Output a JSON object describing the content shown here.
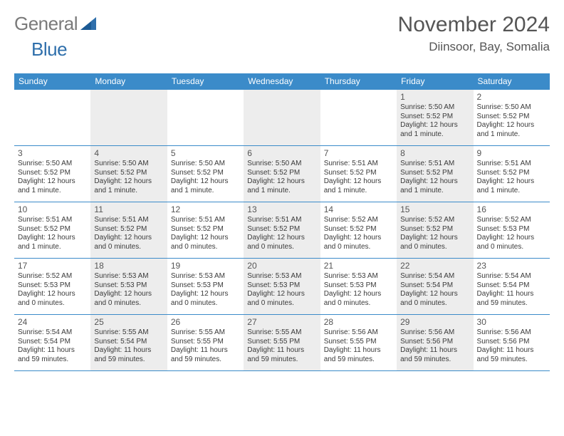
{
  "brand": {
    "part1": "General",
    "part2": "Blue"
  },
  "header": {
    "title": "November 2024",
    "location": "Diinsoor, Bay, Somalia"
  },
  "colors": {
    "header_bg": "#3b8bc9",
    "shade_bg": "#ededed",
    "text": "#3a3a3a"
  },
  "dayNames": [
    "Sunday",
    "Monday",
    "Tuesday",
    "Wednesday",
    "Thursday",
    "Friday",
    "Saturday"
  ],
  "weeks": [
    [
      {
        "blank": true
      },
      {
        "blank": true,
        "shaded": true
      },
      {
        "blank": true
      },
      {
        "blank": true,
        "shaded": true
      },
      {
        "blank": true
      },
      {
        "date": "1",
        "shaded": true,
        "sunrise": "Sunrise: 5:50 AM",
        "sunset": "Sunset: 5:52 PM",
        "day1": "Daylight: 12 hours",
        "day2": "and 1 minute."
      },
      {
        "date": "2",
        "sunrise": "Sunrise: 5:50 AM",
        "sunset": "Sunset: 5:52 PM",
        "day1": "Daylight: 12 hours",
        "day2": "and 1 minute."
      }
    ],
    [
      {
        "date": "3",
        "sunrise": "Sunrise: 5:50 AM",
        "sunset": "Sunset: 5:52 PM",
        "day1": "Daylight: 12 hours",
        "day2": "and 1 minute."
      },
      {
        "date": "4",
        "shaded": true,
        "sunrise": "Sunrise: 5:50 AM",
        "sunset": "Sunset: 5:52 PM",
        "day1": "Daylight: 12 hours",
        "day2": "and 1 minute."
      },
      {
        "date": "5",
        "sunrise": "Sunrise: 5:50 AM",
        "sunset": "Sunset: 5:52 PM",
        "day1": "Daylight: 12 hours",
        "day2": "and 1 minute."
      },
      {
        "date": "6",
        "shaded": true,
        "sunrise": "Sunrise: 5:50 AM",
        "sunset": "Sunset: 5:52 PM",
        "day1": "Daylight: 12 hours",
        "day2": "and 1 minute."
      },
      {
        "date": "7",
        "sunrise": "Sunrise: 5:51 AM",
        "sunset": "Sunset: 5:52 PM",
        "day1": "Daylight: 12 hours",
        "day2": "and 1 minute."
      },
      {
        "date": "8",
        "shaded": true,
        "sunrise": "Sunrise: 5:51 AM",
        "sunset": "Sunset: 5:52 PM",
        "day1": "Daylight: 12 hours",
        "day2": "and 1 minute."
      },
      {
        "date": "9",
        "sunrise": "Sunrise: 5:51 AM",
        "sunset": "Sunset: 5:52 PM",
        "day1": "Daylight: 12 hours",
        "day2": "and 1 minute."
      }
    ],
    [
      {
        "date": "10",
        "sunrise": "Sunrise: 5:51 AM",
        "sunset": "Sunset: 5:52 PM",
        "day1": "Daylight: 12 hours",
        "day2": "and 1 minute."
      },
      {
        "date": "11",
        "shaded": true,
        "sunrise": "Sunrise: 5:51 AM",
        "sunset": "Sunset: 5:52 PM",
        "day1": "Daylight: 12 hours",
        "day2": "and 0 minutes."
      },
      {
        "date": "12",
        "sunrise": "Sunrise: 5:51 AM",
        "sunset": "Sunset: 5:52 PM",
        "day1": "Daylight: 12 hours",
        "day2": "and 0 minutes."
      },
      {
        "date": "13",
        "shaded": true,
        "sunrise": "Sunrise: 5:51 AM",
        "sunset": "Sunset: 5:52 PM",
        "day1": "Daylight: 12 hours",
        "day2": "and 0 minutes."
      },
      {
        "date": "14",
        "sunrise": "Sunrise: 5:52 AM",
        "sunset": "Sunset: 5:52 PM",
        "day1": "Daylight: 12 hours",
        "day2": "and 0 minutes."
      },
      {
        "date": "15",
        "shaded": true,
        "sunrise": "Sunrise: 5:52 AM",
        "sunset": "Sunset: 5:52 PM",
        "day1": "Daylight: 12 hours",
        "day2": "and 0 minutes."
      },
      {
        "date": "16",
        "sunrise": "Sunrise: 5:52 AM",
        "sunset": "Sunset: 5:53 PM",
        "day1": "Daylight: 12 hours",
        "day2": "and 0 minutes."
      }
    ],
    [
      {
        "date": "17",
        "sunrise": "Sunrise: 5:52 AM",
        "sunset": "Sunset: 5:53 PM",
        "day1": "Daylight: 12 hours",
        "day2": "and 0 minutes."
      },
      {
        "date": "18",
        "shaded": true,
        "sunrise": "Sunrise: 5:53 AM",
        "sunset": "Sunset: 5:53 PM",
        "day1": "Daylight: 12 hours",
        "day2": "and 0 minutes."
      },
      {
        "date": "19",
        "sunrise": "Sunrise: 5:53 AM",
        "sunset": "Sunset: 5:53 PM",
        "day1": "Daylight: 12 hours",
        "day2": "and 0 minutes."
      },
      {
        "date": "20",
        "shaded": true,
        "sunrise": "Sunrise: 5:53 AM",
        "sunset": "Sunset: 5:53 PM",
        "day1": "Daylight: 12 hours",
        "day2": "and 0 minutes."
      },
      {
        "date": "21",
        "sunrise": "Sunrise: 5:53 AM",
        "sunset": "Sunset: 5:53 PM",
        "day1": "Daylight: 12 hours",
        "day2": "and 0 minutes."
      },
      {
        "date": "22",
        "shaded": true,
        "sunrise": "Sunrise: 5:54 AM",
        "sunset": "Sunset: 5:54 PM",
        "day1": "Daylight: 12 hours",
        "day2": "and 0 minutes."
      },
      {
        "date": "23",
        "sunrise": "Sunrise: 5:54 AM",
        "sunset": "Sunset: 5:54 PM",
        "day1": "Daylight: 11 hours",
        "day2": "and 59 minutes."
      }
    ],
    [
      {
        "date": "24",
        "sunrise": "Sunrise: 5:54 AM",
        "sunset": "Sunset: 5:54 PM",
        "day1": "Daylight: 11 hours",
        "day2": "and 59 minutes."
      },
      {
        "date": "25",
        "shaded": true,
        "sunrise": "Sunrise: 5:55 AM",
        "sunset": "Sunset: 5:54 PM",
        "day1": "Daylight: 11 hours",
        "day2": "and 59 minutes."
      },
      {
        "date": "26",
        "sunrise": "Sunrise: 5:55 AM",
        "sunset": "Sunset: 5:55 PM",
        "day1": "Daylight: 11 hours",
        "day2": "and 59 minutes."
      },
      {
        "date": "27",
        "shaded": true,
        "sunrise": "Sunrise: 5:55 AM",
        "sunset": "Sunset: 5:55 PM",
        "day1": "Daylight: 11 hours",
        "day2": "and 59 minutes."
      },
      {
        "date": "28",
        "sunrise": "Sunrise: 5:56 AM",
        "sunset": "Sunset: 5:55 PM",
        "day1": "Daylight: 11 hours",
        "day2": "and 59 minutes."
      },
      {
        "date": "29",
        "shaded": true,
        "sunrise": "Sunrise: 5:56 AM",
        "sunset": "Sunset: 5:56 PM",
        "day1": "Daylight: 11 hours",
        "day2": "and 59 minutes."
      },
      {
        "date": "30",
        "sunrise": "Sunrise: 5:56 AM",
        "sunset": "Sunset: 5:56 PM",
        "day1": "Daylight: 11 hours",
        "day2": "and 59 minutes."
      }
    ]
  ]
}
